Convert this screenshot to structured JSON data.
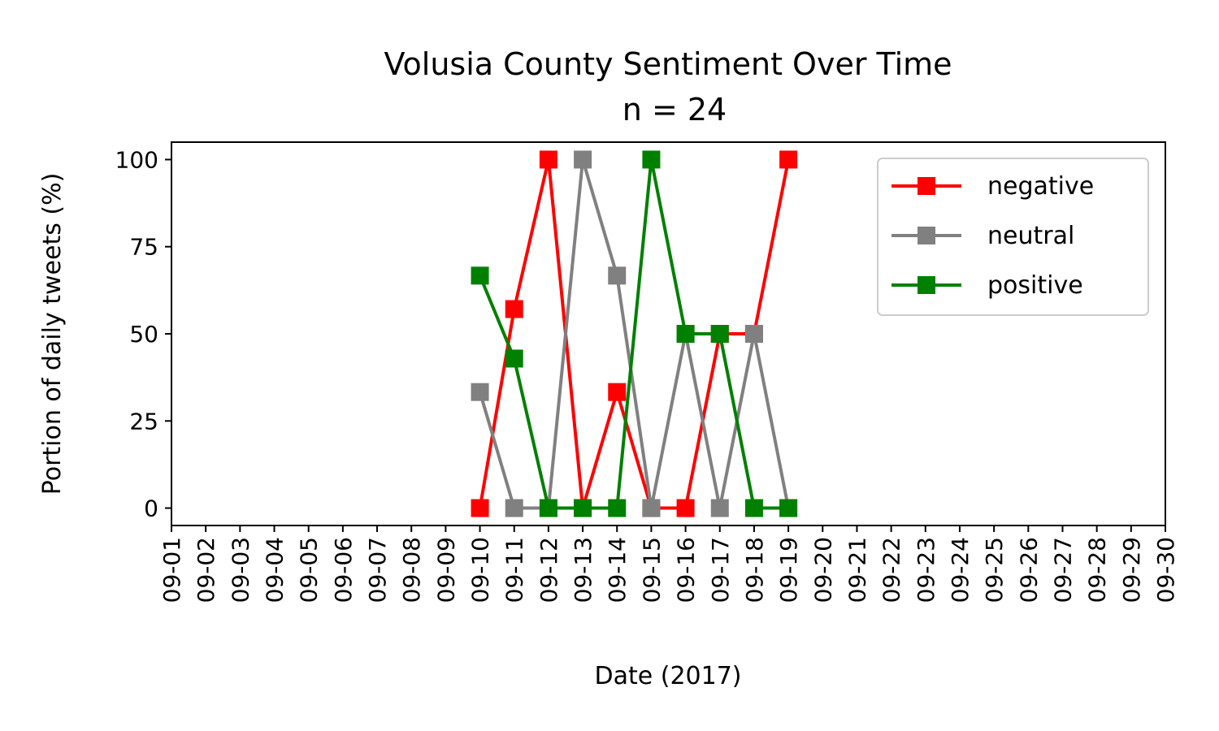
{
  "chart_data": {
    "type": "line",
    "title": "Volusia County Sentiment Over Time",
    "subtitle": "n = 24",
    "xlabel": "Date (2017)",
    "ylabel": "Portion of daily tweets (%)",
    "categories": [
      "09-01",
      "09-02",
      "09-03",
      "09-04",
      "09-05",
      "09-06",
      "09-07",
      "09-08",
      "09-09",
      "09-10",
      "09-11",
      "09-12",
      "09-13",
      "09-14",
      "09-15",
      "09-16",
      "09-17",
      "09-18",
      "09-19",
      "09-20",
      "09-21",
      "09-22",
      "09-23",
      "09-24",
      "09-25",
      "09-26",
      "09-27",
      "09-28",
      "09-29",
      "09-30"
    ],
    "series": [
      {
        "name": "negative",
        "color": "#ff0000",
        "values": [
          null,
          null,
          null,
          null,
          null,
          null,
          null,
          null,
          null,
          0,
          57.1,
          100,
          0,
          33.3,
          0,
          0,
          50,
          50,
          100,
          null,
          null,
          null,
          null,
          null,
          null,
          null,
          null,
          null,
          null,
          null
        ]
      },
      {
        "name": "neutral",
        "color": "#808080",
        "values": [
          null,
          null,
          null,
          null,
          null,
          null,
          null,
          null,
          null,
          33.3,
          0,
          0,
          100,
          66.7,
          0,
          50,
          0,
          50,
          0,
          null,
          null,
          null,
          null,
          null,
          null,
          null,
          null,
          null,
          null,
          null
        ]
      },
      {
        "name": "positive",
        "color": "#008000",
        "values": [
          null,
          null,
          null,
          null,
          null,
          null,
          null,
          null,
          null,
          66.7,
          42.9,
          0,
          0,
          0,
          100,
          50,
          50,
          0,
          0,
          null,
          null,
          null,
          null,
          null,
          null,
          null,
          null,
          null,
          null,
          null
        ]
      }
    ],
    "ylim": [
      -5,
      105
    ],
    "yticks": [
      0,
      25,
      50,
      75,
      100
    ],
    "legend": "upper right",
    "grid": false
  }
}
